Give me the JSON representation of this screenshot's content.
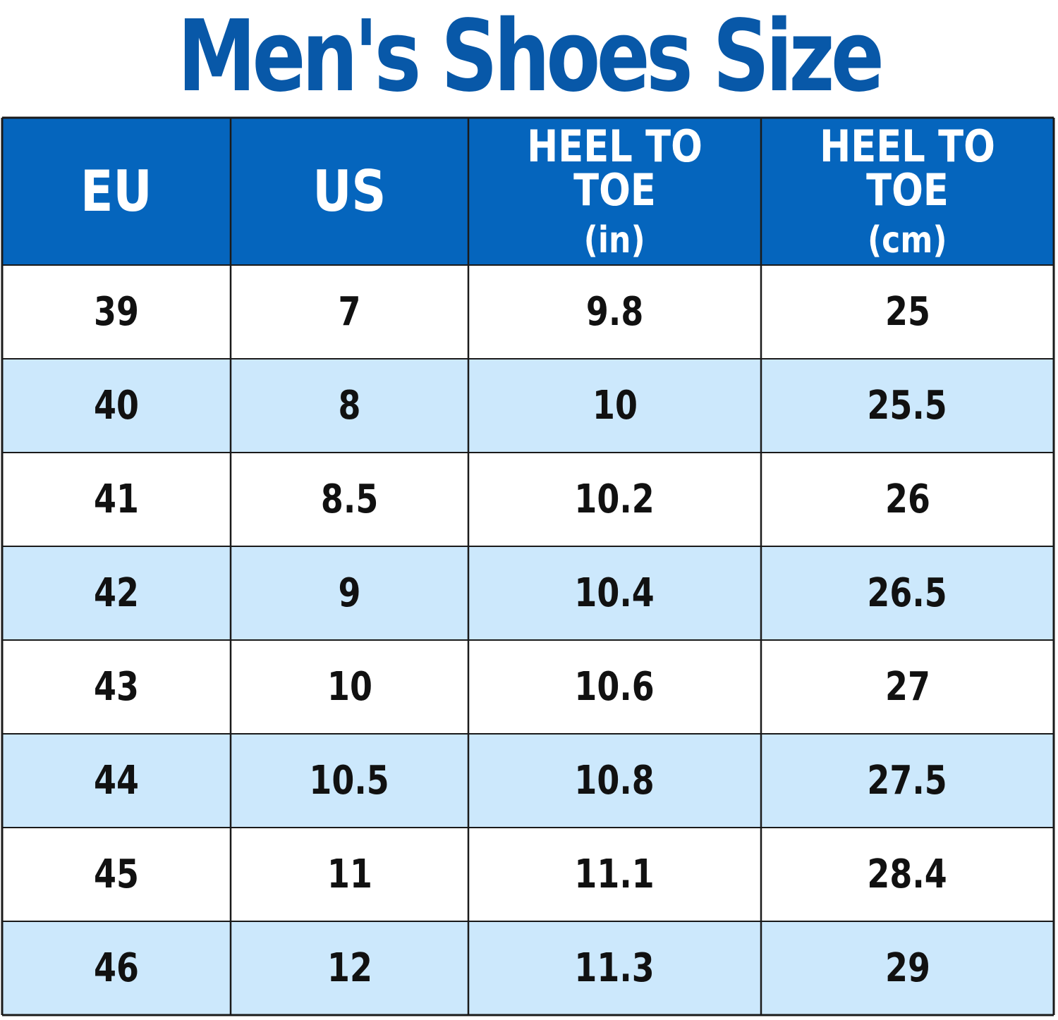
{
  "title": "Men's Shoes Size",
  "colors": {
    "title": "#0858a8",
    "header_bg": "#0565bd",
    "header_text": "#ffffff",
    "row_white": "#ffffff",
    "row_blue": "#cce8fc",
    "grid": "#1a1a1a",
    "cell_text": "#111111"
  },
  "chart_data": {
    "type": "table",
    "title": "Men's Shoes Size",
    "columns": [
      {
        "label": "EU",
        "unit": ""
      },
      {
        "label": "US",
        "unit": ""
      },
      {
        "label": "HEEL TO TOE",
        "unit": "(in)"
      },
      {
        "label": "HEEL TO TOE",
        "unit": "(cm)"
      }
    ],
    "rows": [
      [
        "39",
        "7",
        "9.8",
        "25"
      ],
      [
        "40",
        "8",
        "10",
        "25.5"
      ],
      [
        "41",
        "8.5",
        "10.2",
        "26"
      ],
      [
        "42",
        "9",
        "10.4",
        "26.5"
      ],
      [
        "43",
        "10",
        "10.6",
        "27"
      ],
      [
        "44",
        "10.5",
        "10.8",
        "27.5"
      ],
      [
        "45",
        "11",
        "11.1",
        "28.4"
      ],
      [
        "46",
        "12",
        "11.3",
        "29"
      ]
    ],
    "row_shading": "alternating white / light blue"
  }
}
